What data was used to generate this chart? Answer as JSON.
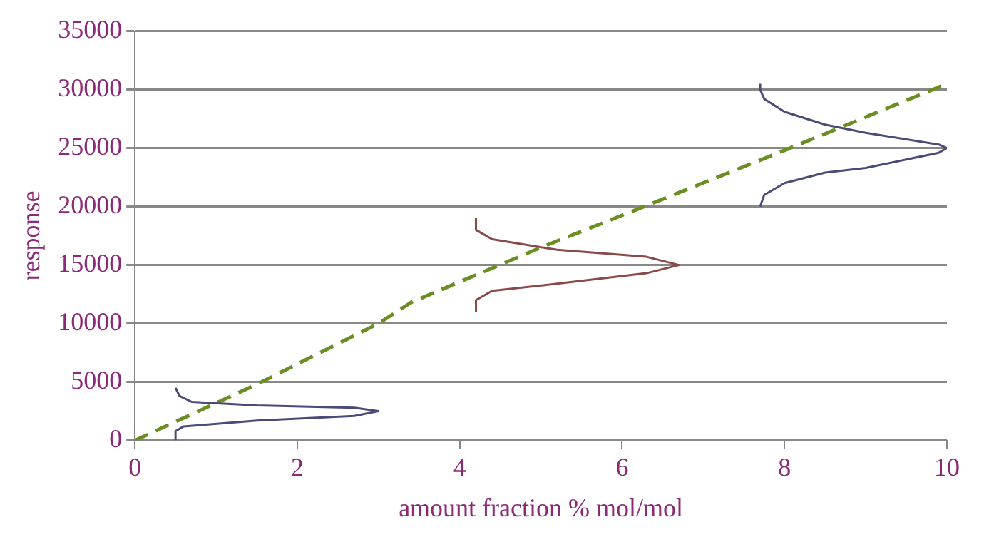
{
  "chart_data": {
    "type": "line",
    "xlabel": "amount fraction % mol/mol",
    "ylabel": "response",
    "xlim": [
      0,
      10
    ],
    "xticks": [
      0,
      2,
      4,
      6,
      8,
      10
    ],
    "ylim": [
      0,
      35000
    ],
    "yticks": [
      0,
      5000,
      10000,
      15000,
      20000,
      25000,
      30000,
      35000
    ],
    "grid": "y",
    "legend": false,
    "marker": "none",
    "series": [
      {
        "color": "#4b4b7a",
        "line_style": "solid",
        "x": [
          0.5,
          0.5,
          0.6,
          1.5,
          2.7,
          3.0,
          2.7,
          1.5,
          0.7,
          0.55,
          0.5
        ],
        "values": [
          0,
          800,
          1200,
          1700,
          2100,
          2500,
          2800,
          3000,
          3300,
          3800,
          4500
        ]
      },
      {
        "color": "#8b4a4a",
        "line_style": "solid",
        "x": [
          4.2,
          4.2,
          4.4,
          5.2,
          6.3,
          6.7,
          6.3,
          5.2,
          4.4,
          4.2,
          4.2
        ],
        "values": [
          11000,
          12000,
          12800,
          13400,
          14300,
          15000,
          15700,
          16300,
          17200,
          18000,
          19000
        ]
      },
      {
        "color": "#4b4b7a",
        "line_style": "solid",
        "x": [
          7.7,
          7.75,
          8.0,
          8.5,
          9.0,
          9.9,
          10,
          9.9,
          9.0,
          8.5,
          8.0,
          7.75,
          7.7,
          7.7
        ],
        "values": [
          20000,
          21000,
          22000,
          22900,
          23300,
          24600,
          25000,
          25300,
          26300,
          27000,
          28100,
          29200,
          30000,
          30500
        ]
      },
      {
        "color": "#6b8e23",
        "line_style": "dashed",
        "x": [
          0,
          1.5,
          3,
          3.4,
          5,
          6.2,
          8,
          10
        ],
        "values": [
          0,
          4800,
          10000,
          11800,
          16500,
          19800,
          24800,
          30500
        ]
      }
    ]
  }
}
